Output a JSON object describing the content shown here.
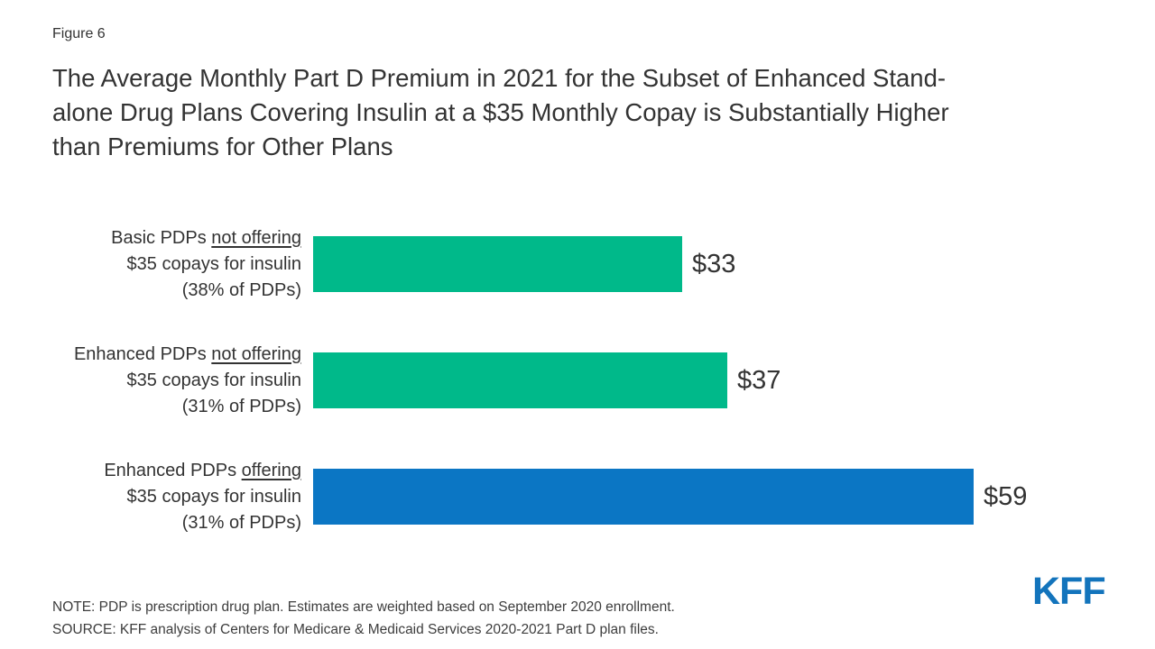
{
  "figure_label": "Figure 6",
  "title": "The Average Monthly Part D Premium in 2021 for the Subset of Enhanced Stand-alone Drug Plans Covering Insulin at a $35 Monthly Copay is Substantially Higher than Premiums for Other Plans",
  "title_lines": [
    "The Average Monthly Part D Premium in 2021 for the Subset of Enhanced Stand-",
    "alone Drug Plans Covering Insulin at a $35 Monthly Copay is Substantially Higher",
    "than Premiums for Other Plans"
  ],
  "chart_data": {
    "type": "bar",
    "orientation": "horizontal",
    "title": "The Average Monthly Part D Premium in 2021 for the Subset of Enhanced Stand-alone Drug Plans Covering Insulin at a $35 Monthly Copay is Substantially Higher than Premiums for Other Plans",
    "xlabel": "",
    "ylabel": "",
    "xlim": [
      0,
      65
    ],
    "grid": false,
    "legend": false,
    "categories": [
      "Basic PDPs not offering $35 copays for insulin (38% of PDPs)",
      "Enhanced PDPs not offering $35 copays for insulin (31% of PDPs)",
      "Enhanced PDPs offering $35 copays for insulin (31% of PDPs)"
    ],
    "values": [
      33,
      37,
      59
    ],
    "bars": [
      {
        "label_prefix": "Basic PDPs ",
        "label_underlined": "not offering",
        "label_line2": "$35 copays for insulin",
        "label_line3": "(38% of PDPs)",
        "value": 33,
        "value_label": "$33",
        "color": "#00B98A"
      },
      {
        "label_prefix": "Enhanced PDPs ",
        "label_underlined": "not offering",
        "label_line2": "$35 copays for insulin",
        "label_line3": "(31% of PDPs)",
        "value": 37,
        "value_label": "$37",
        "color": "#00B98A"
      },
      {
        "label_prefix": "Enhanced PDPs ",
        "label_underlined": "offering",
        "label_line2": "$35 copays for insulin",
        "label_line3": "(31% of PDPs)",
        "value": 59,
        "value_label": "$59",
        "color": "#0B76C4"
      }
    ]
  },
  "footer": {
    "note": "NOTE: PDP is prescription drug plan. Estimates are weighted based on September 2020 enrollment.",
    "source": "SOURCE: KFF analysis of Centers for Medicare & Medicaid Services 2020-2021 Part D plan files."
  },
  "logo_text": "KFF",
  "colors": {
    "bar_green": "#00B98A",
    "bar_blue": "#0B76C4",
    "logo_blue": "#1374BC",
    "text": "#333333"
  }
}
